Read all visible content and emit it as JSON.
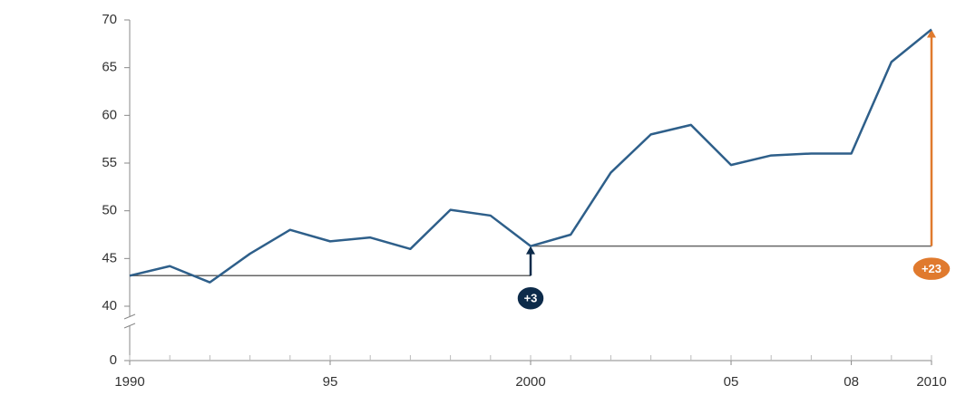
{
  "chart_data": {
    "type": "line",
    "x": [
      1990,
      1991,
      1992,
      1993,
      1994,
      1995,
      1996,
      1997,
      1998,
      1999,
      2000,
      2001,
      2002,
      2003,
      2004,
      2005,
      2006,
      2007,
      2008,
      2009,
      2010
    ],
    "series": [
      {
        "color": "#2e5f8a",
        "values": [
          43.2,
          44.2,
          42.5,
          45.5,
          48,
          46.8,
          47.2,
          46,
          50.1,
          49.5,
          46.3,
          47.5,
          54,
          58,
          59,
          54.8,
          55.8,
          56,
          56,
          65.6,
          69
        ]
      }
    ],
    "xlim": [
      1990,
      2010
    ],
    "xticks": [
      1990,
      {
        "value": 1995,
        "label": "95"
      },
      2000,
      {
        "value": 2005,
        "label": "05"
      },
      {
        "value": 2008,
        "label": "08"
      },
      2010
    ],
    "ylim": [
      0,
      70
    ],
    "ybreak": [
      0,
      40
    ],
    "yticks": [
      0,
      40,
      45,
      50,
      55,
      60,
      65,
      70
    ],
    "annotations": [
      {
        "text": "+3",
        "x": 2000,
        "x_start": 1990,
        "from": 43.2,
        "to": 46.3,
        "color": "#0d2b4a"
      },
      {
        "text": "+23",
        "x": 2010,
        "x_start": 2000,
        "from": 46.3,
        "to": 69,
        "color": "#e07a2e"
      }
    ]
  }
}
